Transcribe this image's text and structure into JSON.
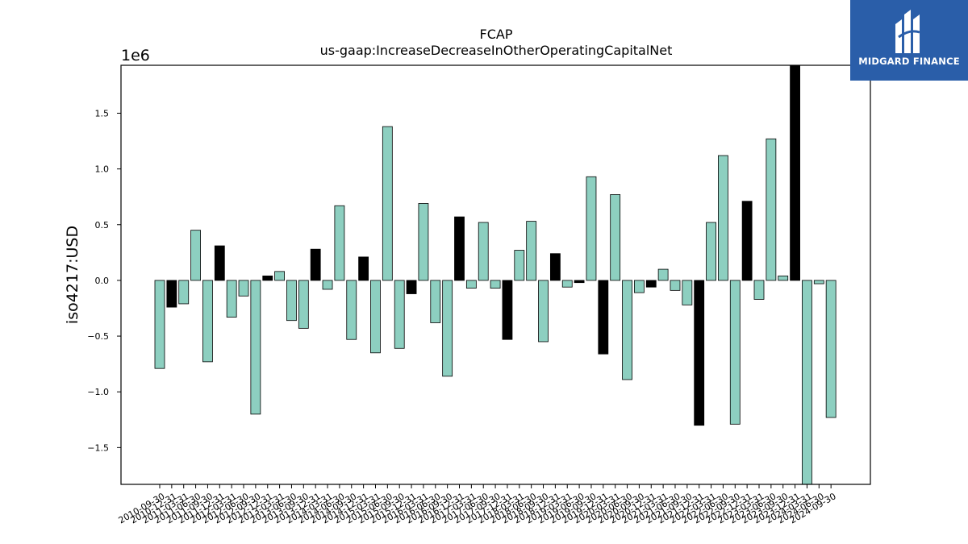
{
  "brand": {
    "name": "MIDGARD FINANCE",
    "logo_icon": "midgard-logo-icon",
    "background": "#2a5ea9"
  },
  "chart_data": {
    "type": "bar",
    "title": "FCAP",
    "subtitle": "us-gaap:IncreaseDecreaseInOtherOperatingCapitalNet",
    "ylabel": "iso4217:USD",
    "xlabel": "",
    "y_multiplier_label": "1e6",
    "ylim": [
      -1.83,
      1.93
    ],
    "yticks": [
      -1.5,
      -1.0,
      -0.5,
      0.0,
      0.5,
      1.0,
      1.5
    ],
    "ytick_labels": [
      "−1.5",
      "−1.0",
      "−0.5",
      "0.0",
      "0.5",
      "1.0",
      "1.5"
    ],
    "grid": false,
    "colors": {
      "quarterly": "#8dcfc0",
      "annual": "#000000",
      "edge": "#000000"
    },
    "categories": [
      "2010-09-30",
      "2010-12-31",
      "2011-03-31",
      "2011-06-30",
      "2011-09-30",
      "2011-12-31",
      "2012-03-31",
      "2012-06-30",
      "2012-09-30",
      "2012-12-31",
      "2013-03-31",
      "2013-06-30",
      "2013-09-30",
      "2013-12-31",
      "2014-03-31",
      "2014-06-30",
      "2014-09-30",
      "2014-12-31",
      "2015-03-31",
      "2015-06-30",
      "2015-09-30",
      "2015-12-31",
      "2016-03-31",
      "2016-06-30",
      "2016-09-30",
      "2016-12-31",
      "2017-03-31",
      "2017-06-30",
      "2017-09-30",
      "2017-12-31",
      "2018-03-31",
      "2018-06-30",
      "2018-09-30",
      "2018-12-31",
      "2019-03-31",
      "2019-06-30",
      "2019-09-30",
      "2019-12-31",
      "2020-03-31",
      "2020-06-30",
      "2020-09-30",
      "2020-12-31",
      "2021-03-31",
      "2021-06-30",
      "2021-09-30",
      "2021-12-31",
      "2022-03-31",
      "2022-06-30",
      "2022-09-30",
      "2022-12-31",
      "2023-03-31",
      "2023-06-30",
      "2023-09-30",
      "2023-12-31",
      "2024-03-31",
      "2024-06-30",
      "2024-09-30"
    ],
    "values": [
      -0.79,
      -0.24,
      -0.21,
      0.45,
      -0.73,
      0.31,
      -0.33,
      -0.14,
      -1.2,
      0.04,
      0.08,
      -0.36,
      -0.43,
      0.28,
      -0.08,
      0.67,
      -0.53,
      0.21,
      -0.65,
      1.38,
      -0.61,
      -0.12,
      0.69,
      -0.38,
      -0.86,
      0.57,
      -0.07,
      0.52,
      -0.07,
      -0.53,
      0.27,
      0.53,
      -0.55,
      0.24,
      -0.06,
      -0.02,
      0.93,
      -0.66,
      0.77,
      -0.89,
      -0.11,
      -0.06,
      0.1,
      -0.09,
      -0.22,
      -1.3,
      0.52,
      1.12,
      -1.29,
      0.71,
      -0.17,
      1.27,
      0.04,
      1.93,
      -1.83,
      -0.03,
      -1.23
    ],
    "highlight": [
      0,
      1,
      0,
      0,
      0,
      1,
      0,
      0,
      0,
      1,
      0,
      0,
      0,
      1,
      0,
      0,
      0,
      1,
      0,
      0,
      0,
      1,
      0,
      0,
      0,
      1,
      0,
      0,
      0,
      1,
      0,
      0,
      0,
      1,
      0,
      1,
      0,
      1,
      0,
      0,
      0,
      1,
      0,
      0,
      0,
      1,
      0,
      0,
      0,
      1,
      0,
      0,
      0,
      1,
      0,
      0,
      0
    ]
  }
}
